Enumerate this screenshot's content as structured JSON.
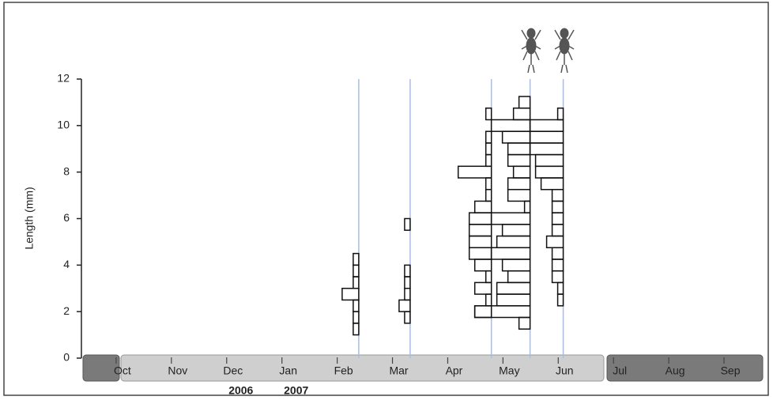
{
  "chart_data": {
    "type": "kite",
    "ylabel": "Length (mm)",
    "ylim": [
      0,
      12
    ],
    "yticks": [
      0,
      2,
      4,
      6,
      8,
      10,
      12
    ],
    "xlim": [
      -0.6,
      11.7
    ],
    "xticks": [
      {
        "value": 0,
        "label": "Oct"
      },
      {
        "value": 1,
        "label": "Nov"
      },
      {
        "value": 2,
        "label": "Dec"
      },
      {
        "value": 3,
        "label": "Jan"
      },
      {
        "value": 4,
        "label": "Feb"
      },
      {
        "value": 5,
        "label": "Mar"
      },
      {
        "value": 6,
        "label": "Apr"
      },
      {
        "value": 7,
        "label": "May"
      },
      {
        "value": 8,
        "label": "Jun"
      },
      {
        "value": 9,
        "label": "Jul"
      },
      {
        "value": 10,
        "label": "Aug"
      },
      {
        "value": 11,
        "label": "Sep"
      }
    ],
    "annotations": [
      {
        "text": "2006",
        "x": 2
      },
      {
        "text": "2007",
        "x": 3
      }
    ],
    "line_color": "#a9bde8",
    "samples": [
      {
        "x": 4.39,
        "bins": [
          1.0,
          1.5,
          2.0,
          2.5,
          3.0,
          3.5,
          4.0,
          4.5
        ],
        "counts": [
          1,
          1,
          1,
          3,
          1,
          1,
          1
        ]
      },
      {
        "x": 5.32,
        "bins": [
          1.5,
          2.0,
          2.5,
          3.0,
          3.5,
          4.0,
          4.5,
          5.0,
          5.5,
          6.0
        ],
        "counts": [
          1,
          2,
          1,
          1,
          1,
          0,
          0,
          0,
          1
        ]
      },
      {
        "x": 6.79,
        "bins": [
          1.75,
          2.25,
          2.75,
          3.25,
          3.75,
          4.25,
          4.75,
          5.25,
          5.75,
          6.25,
          6.75,
          7.25,
          7.75,
          8.25,
          8.75,
          9.25,
          9.75,
          10.25,
          10.75
        ],
        "counts": [
          3,
          1,
          3,
          1,
          3,
          4,
          4,
          4,
          4,
          3,
          1,
          1,
          6,
          1,
          1,
          1,
          0,
          1
        ]
      },
      {
        "x": 7.49,
        "bins": [
          1.25,
          1.75,
          2.25,
          2.75,
          3.25,
          3.75,
          4.25,
          4.75,
          5.25,
          5.75,
          6.25,
          6.75,
          7.25,
          7.75,
          8.25,
          8.75,
          9.25,
          9.75,
          10.25,
          10.75,
          11.25
        ],
        "counts": [
          2,
          10,
          6,
          6,
          4,
          5,
          7,
          6,
          5,
          7,
          1,
          4,
          4,
          3,
          4,
          4,
          5,
          7,
          3,
          2
        ]
      },
      {
        "x": 8.09,
        "bins": [
          2.25,
          2.75,
          3.25,
          3.75,
          4.25,
          4.75,
          5.25,
          5.75,
          6.25,
          6.75,
          7.25,
          7.75,
          8.25,
          8.75,
          9.25,
          9.75,
          10.25,
          10.75
        ],
        "counts": [
          1,
          1,
          2,
          2,
          2,
          3,
          2,
          2,
          2,
          2,
          4,
          5,
          5,
          6,
          6,
          6,
          1
        ]
      }
    ]
  }
}
